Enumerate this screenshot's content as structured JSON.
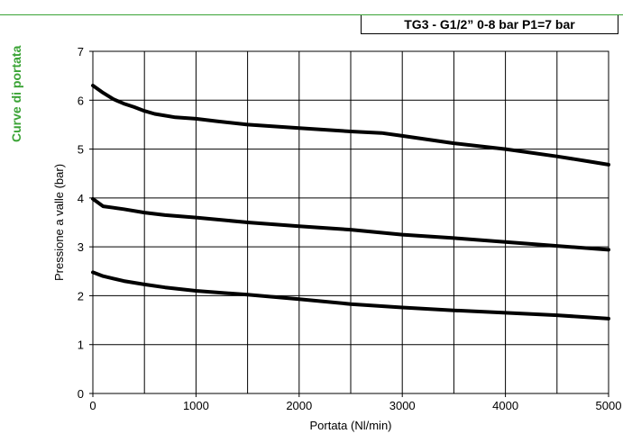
{
  "header": {
    "title": "TG3 - G1/2” 0-8 bar P1=7 bar",
    "side_title": "Curve di portata",
    "accent_color": "#3aa335"
  },
  "chart_data": {
    "type": "line",
    "title": "TG3 - G1/2” 0-8 bar P1=7 bar",
    "xlabel": "Portata (Nl/min)",
    "ylabel": "Pressione a valle (bar)",
    "xlim": [
      0,
      5000
    ],
    "ylim": [
      0,
      7
    ],
    "xticks": [
      0,
      1000,
      2000,
      3000,
      4000,
      5000
    ],
    "yticks": [
      0,
      1,
      2,
      3,
      4,
      5,
      6,
      7
    ],
    "grid": true,
    "line_color": "#000000",
    "series": [
      {
        "x": [
          0,
          100,
          200,
          300,
          400,
          500,
          600,
          800,
          1000,
          1200,
          1500,
          2000,
          2500,
          2800,
          3000,
          3500,
          4000,
          4500,
          4800,
          5000
        ],
        "values": [
          6.3,
          6.15,
          6.02,
          5.93,
          5.86,
          5.78,
          5.72,
          5.65,
          5.62,
          5.57,
          5.5,
          5.43,
          5.36,
          5.33,
          5.27,
          5.12,
          5.0,
          4.85,
          4.75,
          4.68
        ]
      },
      {
        "x": [
          0,
          100,
          200,
          300,
          500,
          700,
          1000,
          1500,
          2000,
          2500,
          3000,
          3500,
          4000,
          4500,
          5000
        ],
        "values": [
          3.98,
          3.83,
          3.8,
          3.77,
          3.7,
          3.65,
          3.6,
          3.5,
          3.42,
          3.35,
          3.25,
          3.18,
          3.1,
          3.02,
          2.94
        ]
      },
      {
        "x": [
          0,
          100,
          200,
          300,
          500,
          700,
          1000,
          1500,
          2000,
          2500,
          3000,
          3500,
          4000,
          4500,
          5000
        ],
        "values": [
          2.48,
          2.4,
          2.35,
          2.3,
          2.23,
          2.17,
          2.1,
          2.02,
          1.93,
          1.83,
          1.76,
          1.7,
          1.65,
          1.6,
          1.53
        ]
      }
    ]
  }
}
